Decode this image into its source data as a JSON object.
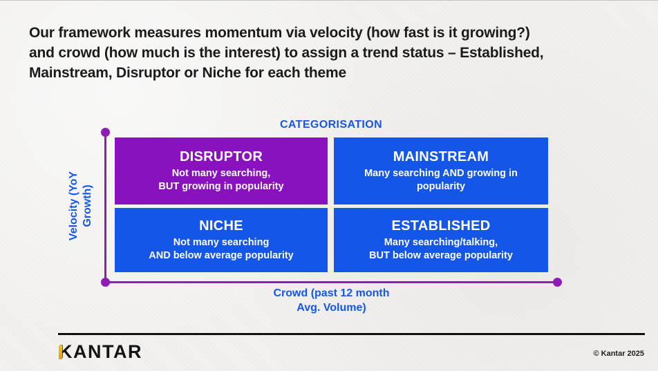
{
  "header": {
    "title_lines": [
      "Our framework measures momentum via velocity (how fast is it growing?)",
      "and crowd (how much is the interest) to assign a trend status – Established,",
      "Mainstream, Disruptor or Niche for each theme"
    ]
  },
  "matrix": {
    "heading": "CATEGORISATION",
    "y_axis": {
      "line1": "Velocity (YoY",
      "line2": "Growth)"
    },
    "x_axis": {
      "line1": "Crowd (past 12 month",
      "line2": "Avg. Volume)"
    },
    "quadrants": {
      "disruptor": {
        "title": "DISRUPTOR",
        "line1": "Not many searching,",
        "line2": "BUT growing in popularity",
        "color": "#8a12be"
      },
      "mainstream": {
        "title": "MAINSTREAM",
        "line1": "Many searching AND growing in",
        "line2": "popularity",
        "color": "#1456e8"
      },
      "niche": {
        "title": "NICHE",
        "line1": "Not many searching",
        "line2": "AND below average popularity",
        "color": "#1456e8"
      },
      "established": {
        "title": "ESTABLISHED",
        "line1": "Many searching/talking,",
        "line2": "BUT below average popularity",
        "color": "#1456e8"
      }
    }
  },
  "footer": {
    "logo_text": "KANTAR",
    "copyright": "© Kantar 2025"
  },
  "colors": {
    "brand_blue": "#1456e8",
    "brand_purple": "#8a12be",
    "axis_purple": "#8e1db4",
    "logo_gold": "#f0b400",
    "background": "#f2f1ef"
  }
}
